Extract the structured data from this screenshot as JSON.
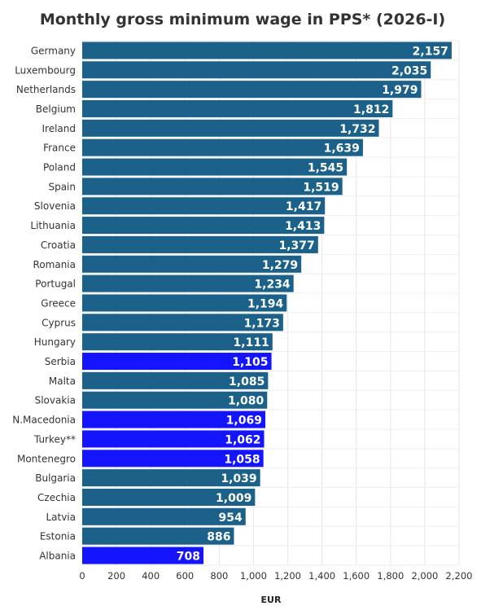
{
  "chart_data": {
    "type": "bar",
    "orientation": "horizontal",
    "title": "Monthly gross minimum wage in PPS* (2026-I)",
    "xlabel": "EUR",
    "ylabel": "",
    "xlim": [
      0,
      2200
    ],
    "xticks": [
      0,
      200,
      400,
      600,
      800,
      1000,
      1200,
      1400,
      1600,
      1800,
      2000,
      2200
    ],
    "xtick_labels": [
      "0",
      "200",
      "400",
      "600",
      "800",
      "1,000",
      "1,200",
      "1,400",
      "1,600",
      "1,800",
      "2,000",
      "2,200"
    ],
    "grid": true,
    "colors": {
      "default": "#1b6189",
      "highlight": "#1414ff"
    },
    "bars": [
      {
        "category": "Germany",
        "value": 2157,
        "label": "2,157",
        "highlight": false
      },
      {
        "category": "Luxembourg",
        "value": 2035,
        "label": "2,035",
        "highlight": false
      },
      {
        "category": "Netherlands",
        "value": 1979,
        "label": "1,979",
        "highlight": false
      },
      {
        "category": "Belgium",
        "value": 1812,
        "label": "1,812",
        "highlight": false
      },
      {
        "category": "Ireland",
        "value": 1732,
        "label": "1,732",
        "highlight": false
      },
      {
        "category": "France",
        "value": 1639,
        "label": "1,639",
        "highlight": false
      },
      {
        "category": "Poland",
        "value": 1545,
        "label": "1,545",
        "highlight": false
      },
      {
        "category": "Spain",
        "value": 1519,
        "label": "1,519",
        "highlight": false
      },
      {
        "category": "Slovenia",
        "value": 1417,
        "label": "1,417",
        "highlight": false
      },
      {
        "category": "Lithuania",
        "value": 1413,
        "label": "1,413",
        "highlight": false
      },
      {
        "category": "Croatia",
        "value": 1377,
        "label": "1,377",
        "highlight": false
      },
      {
        "category": "Romania",
        "value": 1279,
        "label": "1,279",
        "highlight": false
      },
      {
        "category": "Portugal",
        "value": 1234,
        "label": "1,234",
        "highlight": false
      },
      {
        "category": "Greece",
        "value": 1194,
        "label": "1,194",
        "highlight": false
      },
      {
        "category": "Cyprus",
        "value": 1173,
        "label": "1,173",
        "highlight": false
      },
      {
        "category": "Hungary",
        "value": 1111,
        "label": "1,111",
        "highlight": false
      },
      {
        "category": "Serbia",
        "value": 1105,
        "label": "1,105",
        "highlight": true
      },
      {
        "category": "Malta",
        "value": 1085,
        "label": "1,085",
        "highlight": false
      },
      {
        "category": "Slovakia",
        "value": 1080,
        "label": "1,080",
        "highlight": false
      },
      {
        "category": "N.Macedonia",
        "value": 1069,
        "label": "1,069",
        "highlight": true
      },
      {
        "category": "Turkey**",
        "value": 1062,
        "label": "1,062",
        "highlight": true
      },
      {
        "category": "Montenegro",
        "value": 1058,
        "label": "1,058",
        "highlight": true
      },
      {
        "category": "Bulgaria",
        "value": 1039,
        "label": "1,039",
        "highlight": false
      },
      {
        "category": "Czechia",
        "value": 1009,
        "label": "1,009",
        "highlight": false
      },
      {
        "category": "Latvia",
        "value": 954,
        "label": "954",
        "highlight": false
      },
      {
        "category": "Estonia",
        "value": 886,
        "label": "886",
        "highlight": false
      },
      {
        "category": "Albania",
        "value": 708,
        "label": "708",
        "highlight": true
      }
    ]
  }
}
